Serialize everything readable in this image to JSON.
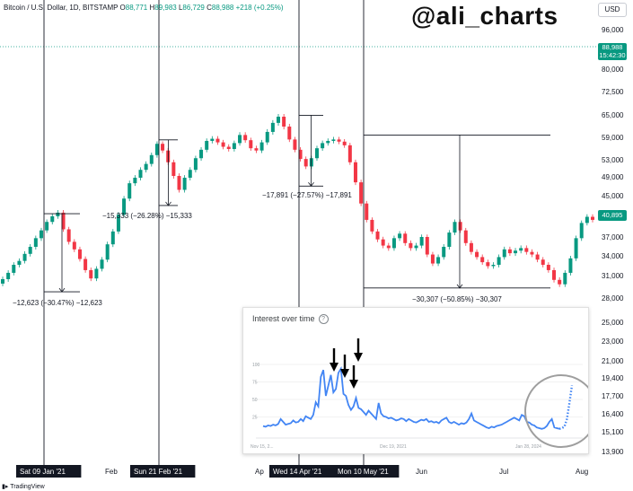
{
  "header": {
    "title": "Bitcoin / U.S. Dollar, 1D, BITSTAMP",
    "open_label": "O",
    "open": "88,771",
    "high_label": "H",
    "high": "89,983",
    "low_label": "L",
    "low": "86,729",
    "close_label": "C",
    "close": "88,988",
    "change": "+218 (+0.25%)"
  },
  "watermark": "@ali_charts",
  "currency": "USD",
  "last_price": "88,988",
  "countdown": "15:42:30",
  "crosshair_price": "40,895",
  "footer_brand": "TradingView",
  "colors": {
    "up": "#089981",
    "down": "#f23645",
    "trend_line": "#4285f4"
  },
  "chart_data": [
    {
      "type": "candlestick",
      "y_axis_ticks": [
        13900,
        15100,
        16400,
        17700,
        19400,
        21000,
        23000,
        25000,
        28000,
        31000,
        34000,
        37000,
        40895,
        45000,
        49000,
        53000,
        59000,
        65000,
        72500,
        80000,
        88988,
        96000
      ],
      "y_axis_tick_labels": [
        "13,900",
        "15,100",
        "16,400",
        "17,700",
        "19,400",
        "21,000",
        "23,000",
        "25,000",
        "28,000",
        "31,000",
        "34,000",
        "37,000",
        "40,895",
        "45,000",
        "49,000",
        "53,000",
        "59,000",
        "65,000",
        "72,500",
        "80,000",
        "88,988",
        "96,000"
      ],
      "x_axis_labels": [
        "Sat 09 Jan '21",
        "Feb",
        "Sun 21 Feb '21",
        "Ap",
        "Wed 14 Apr '21",
        "Mon 10 May '21",
        "Jun",
        "Jul",
        "Aug"
      ],
      "series_close": [
        30500,
        31400,
        32600,
        33200,
        34300,
        35400,
        36800,
        38200,
        39800,
        40900,
        41600,
        38400,
        36200,
        35000,
        33500,
        31800,
        30600,
        32000,
        33400,
        35800,
        38000,
        41200,
        44400,
        47600,
        48800,
        50600,
        52000,
        54200,
        57200,
        55400,
        52400,
        49200,
        46200,
        48800,
        50600,
        53400,
        55600,
        58000,
        58600,
        57600,
        56400,
        55800,
        57400,
        59600,
        58200,
        56000,
        55400,
        57600,
        60400,
        62800,
        64500,
        61800,
        58400,
        55600,
        53200,
        51400,
        53400,
        56000,
        57400,
        58000,
        58400,
        57800,
        56800,
        52400,
        47800,
        43400,
        40200,
        38000,
        36600,
        35600,
        35200,
        36800,
        37600,
        36000,
        35200,
        35600,
        37000,
        34200,
        32800,
        33800,
        35400,
        37800,
        39800,
        38200,
        36000,
        34600,
        33800,
        33000,
        32400,
        32600,
        33800,
        35000,
        34400,
        34800,
        35200,
        34600,
        34200,
        33400,
        32600,
        31800,
        30400,
        29800,
        31400,
        33600,
        36800,
        39600,
        40800,
        40200
      ],
      "annotations": [
        {
          "label": "−12,623 (−30.47%) −12,623",
          "from": 41400,
          "to": 28800
        },
        {
          "label": "−15,333 (−26.28%) −15,333",
          "from": 58300,
          "to": 43000
        },
        {
          "label": "−17,891 (−27.57%) −17,891",
          "from": 64900,
          "to": 47000
        },
        {
          "label": "−30,307 (−50.85%) −30,307",
          "from": 59600,
          "to": 29300
        }
      ],
      "marker_dates": [
        "Sat 09 Jan '21",
        "Sun 21 Feb '21",
        "Wed 14 Apr '21",
        "Mon 10 May '21"
      ]
    },
    {
      "type": "line",
      "title": "Interest over time",
      "y_ticks": [
        25,
        50,
        75,
        100
      ],
      "x_labels": [
        "Nov 15, 2...",
        "Dec 19, 2021",
        "Jan 28, 2024"
      ],
      "values": [
        12,
        11,
        13,
        12,
        14,
        13,
        15,
        22,
        18,
        14,
        15,
        16,
        20,
        17,
        18,
        22,
        19,
        26,
        24,
        22,
        28,
        46,
        40,
        82,
        92,
        55,
        70,
        85,
        60,
        65,
        88,
        94,
        58,
        55,
        42,
        35,
        40,
        52,
        38,
        36,
        32,
        28,
        34,
        30,
        26,
        22,
        45,
        30,
        26,
        25,
        23,
        24,
        22,
        20,
        21,
        23,
        22,
        19,
        22,
        20,
        18,
        17,
        19,
        21,
        20,
        22,
        18,
        19,
        17,
        18,
        16,
        20,
        22,
        24,
        18,
        16,
        18,
        16,
        14,
        16,
        15,
        17,
        22,
        30,
        20,
        18,
        16,
        14,
        12,
        10,
        9,
        11,
        10,
        12,
        13,
        14,
        16,
        18,
        20,
        22,
        24,
        22,
        20,
        28,
        26,
        18,
        17,
        14,
        13,
        10,
        9,
        8,
        9,
        12,
        18,
        22,
        10,
        9,
        8,
        9,
        11,
        22,
        45,
        70
      ],
      "dotted_tail_from_index": 118,
      "arrow_markers": 4
    }
  ]
}
